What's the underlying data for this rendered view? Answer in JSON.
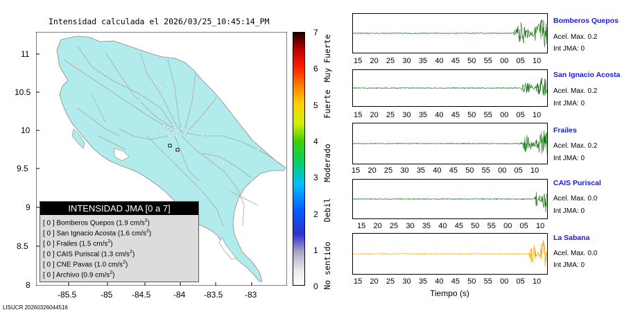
{
  "map": {
    "title": "Intensidad calculada el 2026/03/25_10:45:14_PM",
    "lat_ticks": [
      "11",
      "10.5",
      "10",
      "9.5",
      "9",
      "8.5",
      "8"
    ],
    "lon_ticks": [
      "-85.5",
      "-85",
      "-84.5",
      "-84",
      "-83.5",
      "-83"
    ],
    "colors": {
      "land": "#b2ebeb",
      "sea": "#ffffff",
      "roads": "#aaaaaa"
    }
  },
  "colorbar": {
    "ticks": [
      "7",
      "6",
      "5",
      "4",
      "3",
      "2",
      "1",
      "0"
    ],
    "labels": [
      "Muy Fuerte",
      "Fuerte",
      "Moderado",
      "Debil",
      "No sentido"
    ]
  },
  "legend": {
    "title": "INTENSIDAD JMA [0 a 7]",
    "rows": [
      {
        "level": "[ 0 ]",
        "name": "Bomberos Quepos",
        "value": "(1.9 cm/s",
        "sup": "2",
        "close": ")"
      },
      {
        "level": "[ 0 ]",
        "name": "San Ignacio Acosta",
        "value": "(1.6 cm/s",
        "sup": "2",
        "close": ")"
      },
      {
        "level": "[ 0 ]",
        "name": "Frailes",
        "value": "(1.5 cm/s",
        "sup": "2",
        "close": ")"
      },
      {
        "level": "[ 0 ]",
        "name": "CAIS Puriscal",
        "value": "(1.3 cm/s",
        "sup": "2",
        "close": ")"
      },
      {
        "level": "[ 0 ]",
        "name": "CNE Pavas",
        "value": "(1.0 cm/s",
        "sup": "2",
        "close": ")"
      },
      {
        "level": "[ 0 ]",
        "name": "Archivo",
        "value": "(0.9 cm/s",
        "sup": "2",
        "close": ")"
      }
    ]
  },
  "footer": "LISUCR 20260326044516",
  "traces": [
    {
      "station": "Bomberos Quepos",
      "accel": "Acel. Max. 0.2",
      "int": "Int JMA: 0",
      "color": "#0a6b0a",
      "ticks": [
        "15",
        "20",
        "25",
        "30",
        "35",
        "40",
        "45",
        "50",
        "55",
        "00",
        "05",
        "10"
      ]
    },
    {
      "station": "San Ignacio Acosta",
      "accel": "Acel. Max. 0.2",
      "int": "Int JMA: 0",
      "color": "#0a6b0a",
      "ticks": [
        "15",
        "20",
        "25",
        "30",
        "35",
        "40",
        "45",
        "50",
        "55",
        "00",
        "05",
        "10"
      ]
    },
    {
      "station": "Frailes",
      "accel": "Acel. Max. 0.2",
      "int": "Int JMA: 0",
      "color": "#0a6b0a",
      "ticks": [
        "15",
        "20",
        "25",
        "30",
        "35",
        "40",
        "45",
        "50",
        "55",
        "00",
        "05",
        "10"
      ]
    },
    {
      "station": "CAIS Puriscal",
      "accel": "Acel. Max. 0.0",
      "int": "Int JMA: 0",
      "color": "#0a6b0a",
      "ticks": [
        "15",
        "20",
        "25",
        "30",
        "35",
        "40",
        "45",
        "50",
        "55",
        "00",
        "05",
        "10"
      ]
    },
    {
      "station": "La Sabana",
      "accel": "Acel. Max. 0.0",
      "int": "Int JMA: 0",
      "color": "#f2a800",
      "ticks": [
        "15",
        "20",
        "25",
        "30",
        "35",
        "40",
        "45",
        "50",
        "55",
        "00",
        "05",
        "10"
      ]
    }
  ],
  "x_axis_title": "Tiempo (s)"
}
